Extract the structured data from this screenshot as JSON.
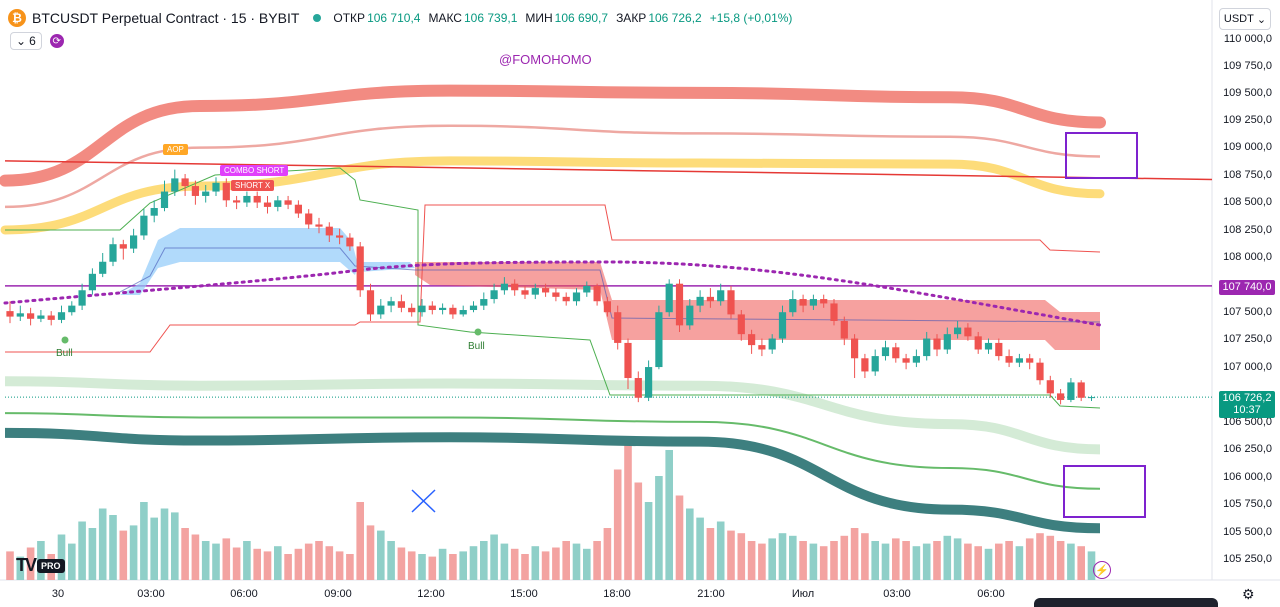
{
  "header": {
    "symbol_logo": "₿",
    "title": "BTCUSDT Perpetual Contract · 15 · BYBIT",
    "open_label": "ОТКР",
    "open_value": "106 710,4",
    "high_label": "МАКС",
    "high_value": "106 739,1",
    "low_label": "МИН",
    "low_value": "106 690,7",
    "close_label": "ЗАКР",
    "close_value": "106 726,2",
    "change": "+15,8 (+0,01%)"
  },
  "indicators": {
    "count": "6",
    "chevron": "⌄",
    "refresh_icon": "⟳"
  },
  "watermark": "@FOMOHOMO",
  "currency": {
    "label": "USDT",
    "chevron": "⌄"
  },
  "price_axis": {
    "ticks": [
      "110 000,0",
      "109 750,0",
      "109 500,0",
      "109 250,0",
      "109 000,0",
      "108 750,0",
      "108 500,0",
      "108 250,0",
      "108 000,0",
      "107 500,0",
      "107 250,0",
      "107 000,0",
      "106 500,0",
      "106 250,0",
      "106 000,0",
      "105 750,0",
      "105 500,0",
      "105 250,0"
    ],
    "marker_level": "107 740,0",
    "last_price": "106 726,2",
    "countdown": "10:37"
  },
  "time_axis": {
    "ticks": [
      "30",
      "03:00",
      "06:00",
      "09:00",
      "12:00",
      "15:00",
      "18:00",
      "21:00",
      "Июл",
      "03:00",
      "06:00"
    ]
  },
  "signals": {
    "combo_short": "COMBO SHORT",
    "short_x": "SHORT X",
    "buy_label": "AOP",
    "bull_1": "Bull",
    "bull_2": "Bull"
  },
  "branding": {
    "tv": "TV",
    "pro": "PRO"
  },
  "icons": {
    "settings": "⚙",
    "bolt": "⚡"
  },
  "colors": {
    "up": "#26a69a",
    "down": "#ef5350",
    "accent": "#9c27b0",
    "volume_up": "#8fcfc8",
    "volume_down": "#f3a3a1",
    "red_band": "#f28b82",
    "yellow_band": "#fdd663",
    "blue_cloud": "#90caf9",
    "teal_band": "#3d7f7f"
  },
  "chart_data": {
    "type": "candlestick",
    "symbol": "BTCUSDT",
    "interval": "15",
    "ylim": [
      105150,
      110050
    ],
    "last_close": 106726.2,
    "horizontal_levels": [
      107740,
      108780
    ],
    "candles": [
      [
        107510,
        107460,
        107600,
        107400
      ],
      [
        107460,
        107490,
        107560,
        107420
      ],
      [
        107490,
        107440,
        107540,
        107380
      ],
      [
        107440,
        107470,
        107520,
        107410
      ],
      [
        107470,
        107430,
        107510,
        107380
      ],
      [
        107430,
        107500,
        107560,
        107400
      ],
      [
        107500,
        107560,
        107600,
        107470
      ],
      [
        107560,
        107700,
        107760,
        107520
      ],
      [
        107700,
        107850,
        107900,
        107660
      ],
      [
        107850,
        107960,
        108040,
        107820
      ],
      [
        107960,
        108120,
        108180,
        107920
      ],
      [
        108120,
        108080,
        108160,
        107980
      ],
      [
        108080,
        108200,
        108260,
        108040
      ],
      [
        108200,
        108380,
        108440,
        108160
      ],
      [
        108380,
        108450,
        108520,
        108320
      ],
      [
        108450,
        108600,
        108700,
        108420
      ],
      [
        108600,
        108720,
        108800,
        108560
      ],
      [
        108720,
        108650,
        108760,
        108560
      ],
      [
        108650,
        108560,
        108700,
        108480
      ],
      [
        108560,
        108600,
        108660,
        108500
      ],
      [
        108600,
        108680,
        108730,
        108560
      ],
      [
        108680,
        108520,
        108720,
        108460
      ],
      [
        108520,
        108500,
        108560,
        108440
      ],
      [
        108500,
        108560,
        108600,
        108460
      ],
      [
        108560,
        108500,
        108600,
        108450
      ],
      [
        108500,
        108460,
        108560,
        108400
      ],
      [
        108460,
        108520,
        108560,
        108420
      ],
      [
        108520,
        108480,
        108560,
        108440
      ],
      [
        108480,
        108400,
        108520,
        108360
      ],
      [
        108400,
        108300,
        108440,
        108260
      ],
      [
        108300,
        108280,
        108360,
        108220
      ],
      [
        108280,
        108200,
        108320,
        108140
      ],
      [
        108200,
        108180,
        108260,
        108120
      ],
      [
        108180,
        108100,
        108220,
        108060
      ],
      [
        108100,
        107700,
        108140,
        107640
      ],
      [
        107700,
        107480,
        107760,
        107420
      ],
      [
        107480,
        107560,
        107620,
        107440
      ],
      [
        107560,
        107600,
        107640,
        107500
      ],
      [
        107600,
        107540,
        107660,
        107500
      ],
      [
        107540,
        107500,
        107580,
        107460
      ],
      [
        107500,
        107560,
        107620,
        107460
      ],
      [
        107560,
        107520,
        107600,
        107480
      ],
      [
        107520,
        107540,
        107580,
        107480
      ],
      [
        107540,
        107480,
        107570,
        107440
      ],
      [
        107480,
        107520,
        107560,
        107460
      ],
      [
        107520,
        107560,
        107600,
        107500
      ],
      [
        107560,
        107620,
        107680,
        107520
      ],
      [
        107620,
        107700,
        107760,
        107580
      ],
      [
        107700,
        107760,
        107820,
        107660
      ],
      [
        107760,
        107700,
        107800,
        107650
      ],
      [
        107700,
        107660,
        107740,
        107620
      ],
      [
        107660,
        107720,
        107760,
        107620
      ],
      [
        107720,
        107680,
        107760,
        107640
      ],
      [
        107680,
        107640,
        107720,
        107600
      ],
      [
        107640,
        107600,
        107680,
        107560
      ],
      [
        107600,
        107680,
        107720,
        107560
      ],
      [
        107680,
        107740,
        107780,
        107640
      ],
      [
        107740,
        107600,
        107760,
        107560
      ],
      [
        107600,
        107500,
        107640,
        107460
      ],
      [
        107500,
        107220,
        107560,
        107160
      ],
      [
        107220,
        106900,
        107260,
        106800
      ],
      [
        106900,
        106720,
        106960,
        106680
      ],
      [
        106720,
        107000,
        107060,
        106690
      ],
      [
        107000,
        107500,
        107560,
        106980
      ],
      [
        107500,
        107760,
        107800,
        107460
      ],
      [
        107760,
        107380,
        107800,
        107320
      ],
      [
        107380,
        107560,
        107620,
        107340
      ],
      [
        107560,
        107640,
        107700,
        107500
      ],
      [
        107640,
        107600,
        107720,
        107540
      ],
      [
        107600,
        107700,
        107760,
        107560
      ],
      [
        107700,
        107480,
        107740,
        107440
      ],
      [
        107480,
        107300,
        107520,
        107240
      ],
      [
        107300,
        107200,
        107340,
        107120
      ],
      [
        107200,
        107160,
        107260,
        107100
      ],
      [
        107160,
        107260,
        107300,
        107120
      ],
      [
        107260,
        107500,
        107560,
        107220
      ],
      [
        107500,
        107620,
        107700,
        107460
      ],
      [
        107620,
        107560,
        107660,
        107500
      ],
      [
        107560,
        107620,
        107660,
        107520
      ],
      [
        107620,
        107580,
        107660,
        107540
      ],
      [
        107580,
        107420,
        107620,
        107380
      ],
      [
        107420,
        107260,
        107460,
        107200
      ],
      [
        107260,
        107080,
        107300,
        106900
      ],
      [
        107080,
        106960,
        107120,
        106900
      ],
      [
        106960,
        107100,
        107160,
        106920
      ],
      [
        107100,
        107180,
        107240,
        107060
      ],
      [
        107180,
        107080,
        107220,
        107040
      ],
      [
        107080,
        107040,
        107120,
        106980
      ],
      [
        107040,
        107100,
        107160,
        107000
      ],
      [
        107100,
        107260,
        107320,
        107060
      ],
      [
        107260,
        107160,
        107300,
        107100
      ],
      [
        107160,
        107300,
        107360,
        107120
      ],
      [
        107300,
        107360,
        107420,
        107260
      ],
      [
        107360,
        107280,
        107400,
        107240
      ],
      [
        107280,
        107160,
        107320,
        107120
      ],
      [
        107160,
        107220,
        107260,
        107120
      ],
      [
        107220,
        107100,
        107260,
        107060
      ],
      [
        107100,
        107040,
        107160,
        107000
      ],
      [
        107040,
        107080,
        107120,
        107000
      ],
      [
        107080,
        107040,
        107120,
        106980
      ],
      [
        107040,
        106880,
        107080,
        106840
      ],
      [
        106880,
        106760,
        106920,
        106720
      ],
      [
        106760,
        106700,
        106800,
        106660
      ],
      [
        106700,
        106860,
        106900,
        106680
      ],
      [
        106860,
        106720,
        106880,
        106690
      ],
      [
        106720,
        106726,
        106740,
        106690
      ]
    ],
    "volume": [
      22,
      18,
      25,
      30,
      20,
      35,
      28,
      45,
      40,
      55,
      50,
      38,
      42,
      60,
      48,
      55,
      52,
      40,
      35,
      30,
      28,
      32,
      25,
      30,
      24,
      22,
      26,
      20,
      24,
      28,
      30,
      26,
      22,
      20,
      60,
      42,
      38,
      30,
      25,
      22,
      20,
      18,
      24,
      20,
      22,
      26,
      30,
      35,
      28,
      24,
      20,
      26,
      22,
      25,
      30,
      28,
      24,
      30,
      40,
      85,
      110,
      75,
      60,
      80,
      100,
      65,
      55,
      48,
      40,
      45,
      38,
      36,
      30,
      28,
      32,
      36,
      34,
      30,
      28,
      26,
      30,
      34,
      40,
      36,
      30,
      28,
      32,
      30,
      26,
      28,
      30,
      34,
      32,
      28,
      26,
      24,
      28,
      30,
      26,
      32,
      36,
      34,
      30,
      28,
      26,
      22
    ]
  }
}
